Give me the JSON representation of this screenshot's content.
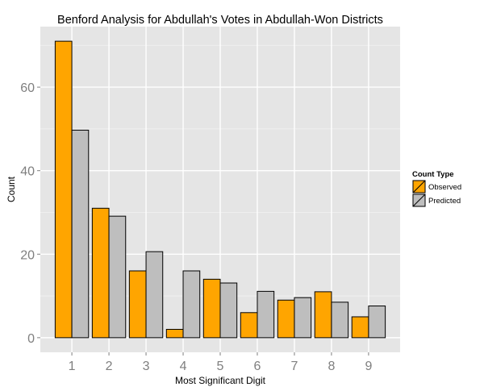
{
  "chart_data": {
    "type": "bar",
    "title": "Benford Analysis for Abdullah's Votes in Abdullah-Won Districts",
    "xlabel": "Most Significant Digit",
    "ylabel": "Count",
    "categories": [
      "1",
      "2",
      "3",
      "4",
      "5",
      "6",
      "7",
      "8",
      "9"
    ],
    "series": [
      {
        "name": "Observed",
        "color": "#FFA500",
        "values": [
          71,
          31,
          16,
          2,
          14,
          6,
          9,
          11,
          5
        ]
      },
      {
        "name": "Predicted",
        "color": "#BEBEBE",
        "values": [
          49.7,
          29.1,
          20.6,
          16.0,
          13.1,
          11.1,
          9.6,
          8.5,
          7.6
        ]
      }
    ],
    "ylim": [
      -3.5,
      74.5
    ],
    "yticks": [
      0,
      20,
      40,
      60
    ],
    "legend": {
      "title": "Count Type",
      "position": "right"
    },
    "grid": true
  }
}
